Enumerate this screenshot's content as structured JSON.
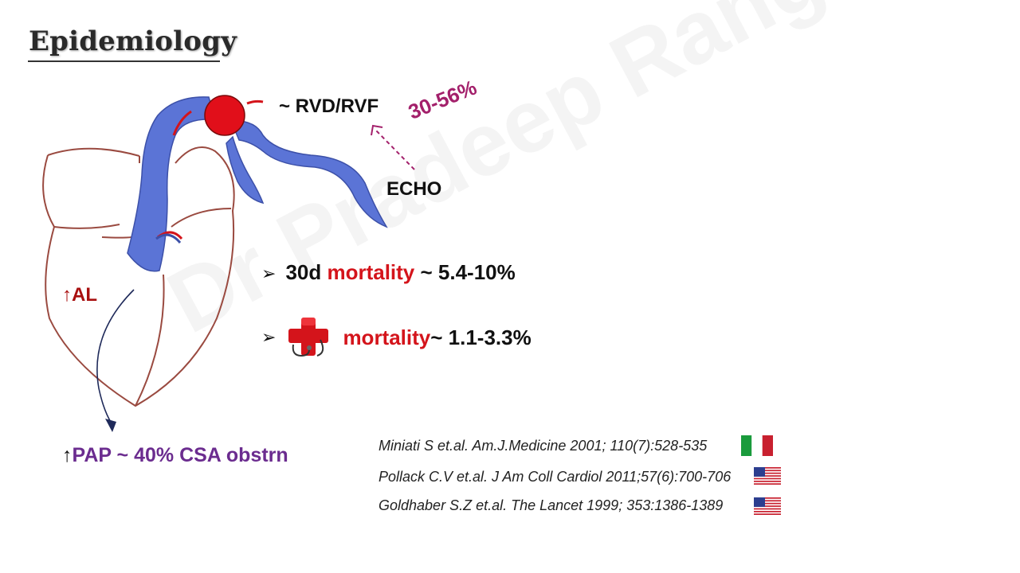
{
  "slide": {
    "title": "Epidemiology",
    "watermark": "Dr Pradeep Rangappa"
  },
  "diagram": {
    "rv_label": "~ RVD/RVF",
    "echo_percent": "30-56%",
    "echo_label": "ECHO",
    "al_arrow": "↑",
    "al_label": "AL",
    "pap_arrow": "↑",
    "pap_label": "PAP ~ 40% CSA obstrn"
  },
  "bullets": [
    {
      "marker": "➢",
      "prefix": "30d ",
      "highlight": "mortality",
      "suffix": " ~ 5.4-10%"
    },
    {
      "marker": "➢",
      "icon": "hospital-cross-stethoscope-icon",
      "highlight": "mortality",
      "suffix": " ~ 1.1-3.3%"
    }
  ],
  "references": [
    {
      "text": "Miniati S et.al. Am.J.Medicine 2001; 110(7):528-535",
      "flag": "italy-flag-icon"
    },
    {
      "text": "Pollack C.V et.al. J Am Coll Cardiol 2011;57(6):700-706",
      "flag": "usa-flag-icon"
    },
    {
      "text": "Goldhaber S.Z et.al. The Lancet 1999; 353:1386-1389",
      "flag": "usa-flag-icon"
    }
  ],
  "colors": {
    "highlight_red": "#d4141b",
    "al_red": "#a80f0f",
    "magenta": "#a3206b",
    "purple": "#6b2c8f",
    "artery_blue": "#5b74d6",
    "heart_outline": "#9a4a40"
  }
}
